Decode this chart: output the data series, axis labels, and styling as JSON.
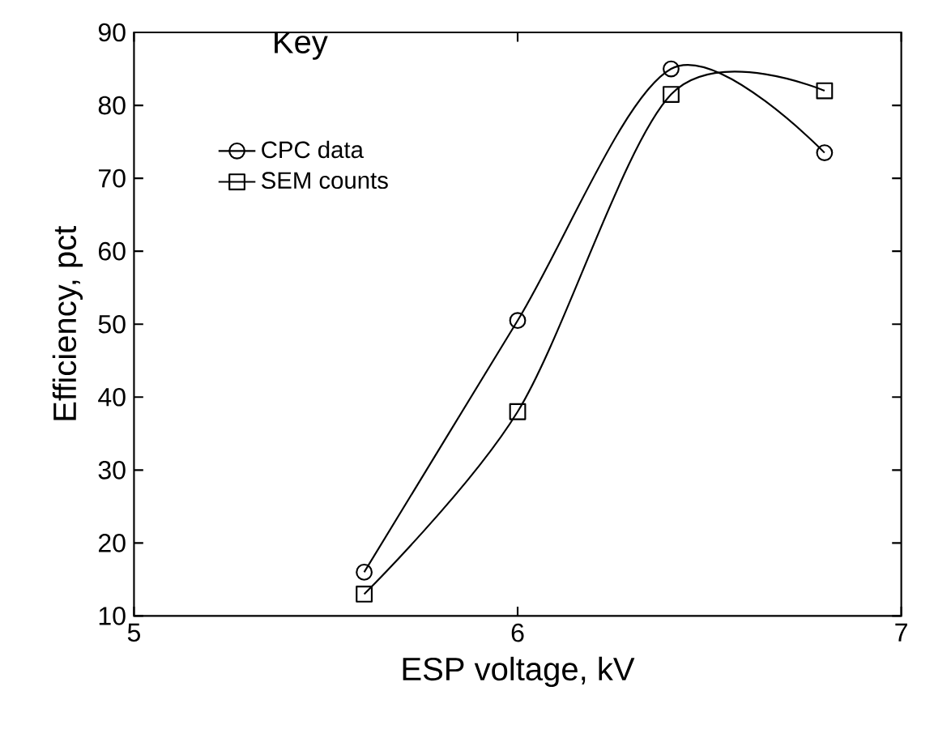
{
  "chart_data": {
    "type": "line",
    "xlabel": "ESP voltage, kV",
    "ylabel": "Efficiency, pct",
    "legend_title": "Key",
    "legend": "top left",
    "grid": false,
    "x": [
      5.6,
      6.0,
      6.4,
      6.8
    ],
    "series": [
      {
        "name": "CPC data",
        "color": "#000000",
        "marker": "circle",
        "values": [
          16,
          50.5,
          85,
          73.5
        ]
      },
      {
        "name": "SEM counts",
        "color": "#000000",
        "marker": "square",
        "values": [
          13,
          38,
          81.5,
          82
        ]
      }
    ],
    "xlim": [
      5,
      7
    ],
    "xticks": [
      5,
      6,
      7
    ],
    "ylim": [
      10,
      90
    ],
    "yticks": [
      10,
      20,
      30,
      40,
      50,
      60,
      70,
      80,
      90
    ]
  }
}
